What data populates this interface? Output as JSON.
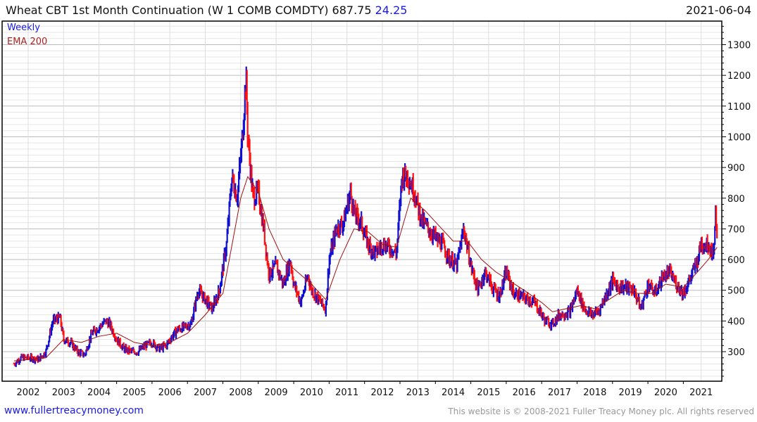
{
  "header": {
    "title": "Wheat CBT 1st Month Continuation (W 1 COMB COMDTY) 687.75",
    "change": "24.25",
    "date": "2021-06-04"
  },
  "legend": {
    "series1": "Weekly",
    "series2": "EMA 200"
  },
  "footer": {
    "site": "www.fullertreacymoney.com",
    "copyright": "This website is © 2008-2021 Fuller Treacy Money plc. All rights reserved"
  },
  "colors": {
    "up": "#1010d0",
    "down": "#ff1010",
    "ema": "#a01010"
  },
  "chart_data": {
    "type": "bar",
    "title": "Wheat CBT 1st Month Continuation (W 1 COMB COMDTY)",
    "xlabel": "",
    "ylabel": "",
    "ylim": [
      205,
      1380
    ],
    "xlim": [
      2001.45,
      2021.55
    ],
    "yticks": [
      300,
      400,
      500,
      600,
      700,
      800,
      900,
      1000,
      1100,
      1200,
      1300
    ],
    "xticks": [
      "2002",
      "2003",
      "2004",
      "2005",
      "2006",
      "2007",
      "2008",
      "2009",
      "2010",
      "2011",
      "2012",
      "2013",
      "2014",
      "2015",
      "2016",
      "2017",
      "2018",
      "2019",
      "2020",
      "2021"
    ],
    "series": [
      {
        "name": "Weekly",
        "x": [
          2001.6,
          2001.8,
          2002.0,
          2002.3,
          2002.5,
          2002.7,
          2002.9,
          2003.0,
          2003.2,
          2003.4,
          2003.6,
          2003.8,
          2004.0,
          2004.2,
          2004.3,
          2004.5,
          2004.7,
          2004.9,
          2005.1,
          2005.3,
          2005.5,
          2005.7,
          2005.9,
          2006.0,
          2006.2,
          2006.4,
          2006.6,
          2006.8,
          2007.0,
          2007.2,
          2007.4,
          2007.6,
          2007.75,
          2007.9,
          2008.05,
          2008.15,
          2008.2,
          2008.35,
          2008.5,
          2008.65,
          2008.8,
          2009.0,
          2009.2,
          2009.4,
          2009.5,
          2009.7,
          2009.9,
          2010.0,
          2010.2,
          2010.4,
          2010.5,
          2010.7,
          2010.9,
          2011.1,
          2011.2,
          2011.4,
          2011.6,
          2011.8,
          2012.0,
          2012.2,
          2012.4,
          2012.55,
          2012.7,
          2012.9,
          2013.1,
          2013.3,
          2013.5,
          2013.7,
          2013.9,
          2014.1,
          2014.3,
          2014.5,
          2014.7,
          2014.9,
          2015.1,
          2015.3,
          2015.5,
          2015.7,
          2015.9,
          2016.1,
          2016.3,
          2016.6,
          2016.8,
          2017.0,
          2017.3,
          2017.5,
          2017.7,
          2017.9,
          2018.1,
          2018.3,
          2018.5,
          2018.7,
          2018.9,
          2019.1,
          2019.3,
          2019.5,
          2019.7,
          2019.9,
          2020.1,
          2020.3,
          2020.5,
          2020.7,
          2020.9,
          2021.0,
          2021.2,
          2021.35,
          2021.4,
          2021.45
        ],
        "values": [
          260,
          280,
          280,
          275,
          300,
          400,
          410,
          340,
          330,
          300,
          290,
          360,
          380,
          400,
          390,
          340,
          310,
          300,
          300,
          320,
          330,
          310,
          320,
          340,
          370,
          380,
          390,
          500,
          470,
          440,
          500,
          650,
          870,
          800,
          1000,
          1200,
          1000,
          800,
          820,
          700,
          550,
          580,
          520,
          600,
          520,
          460,
          550,
          500,
          470,
          440,
          600,
          700,
          720,
          820,
          750,
          720,
          650,
          620,
          650,
          640,
          620,
          870,
          880,
          820,
          730,
          700,
          670,
          650,
          600,
          580,
          700,
          580,
          500,
          560,
          510,
          480,
          560,
          490,
          480,
          470,
          460,
          400,
          390,
          420,
          430,
          500,
          440,
          420,
          430,
          480,
          530,
          510,
          510,
          500,
          440,
          520,
          490,
          540,
          560,
          520,
          490,
          540,
          600,
          650,
          650,
          620,
          750,
          688
        ]
      },
      {
        "name": "EMA 200",
        "x": [
          2001.6,
          2002.5,
          2003.0,
          2003.5,
          2004.0,
          2004.5,
          2005.0,
          2005.5,
          2006.0,
          2006.5,
          2007.0,
          2007.5,
          2008.0,
          2008.2,
          2008.5,
          2008.8,
          2009.2,
          2009.6,
          2010.0,
          2010.4,
          2010.8,
          2011.2,
          2011.6,
          2012.0,
          2012.4,
          2012.8,
          2013.2,
          2013.6,
          2014.0,
          2014.4,
          2014.8,
          2015.2,
          2015.6,
          2016.0,
          2016.5,
          2016.8,
          2017.2,
          2017.6,
          2018.0,
          2018.4,
          2018.8,
          2019.2,
          2019.6,
          2020.0,
          2020.5,
          2020.9,
          2021.2,
          2021.45
        ],
        "values": [
          270,
          280,
          340,
          330,
          350,
          360,
          330,
          320,
          330,
          360,
          420,
          490,
          800,
          870,
          820,
          700,
          600,
          560,
          520,
          470,
          600,
          700,
          690,
          650,
          640,
          800,
          760,
          710,
          660,
          660,
          600,
          560,
          530,
          500,
          460,
          430,
          440,
          450,
          440,
          470,
          500,
          490,
          490,
          520,
          510,
          560,
          600,
          640
        ]
      }
    ]
  }
}
